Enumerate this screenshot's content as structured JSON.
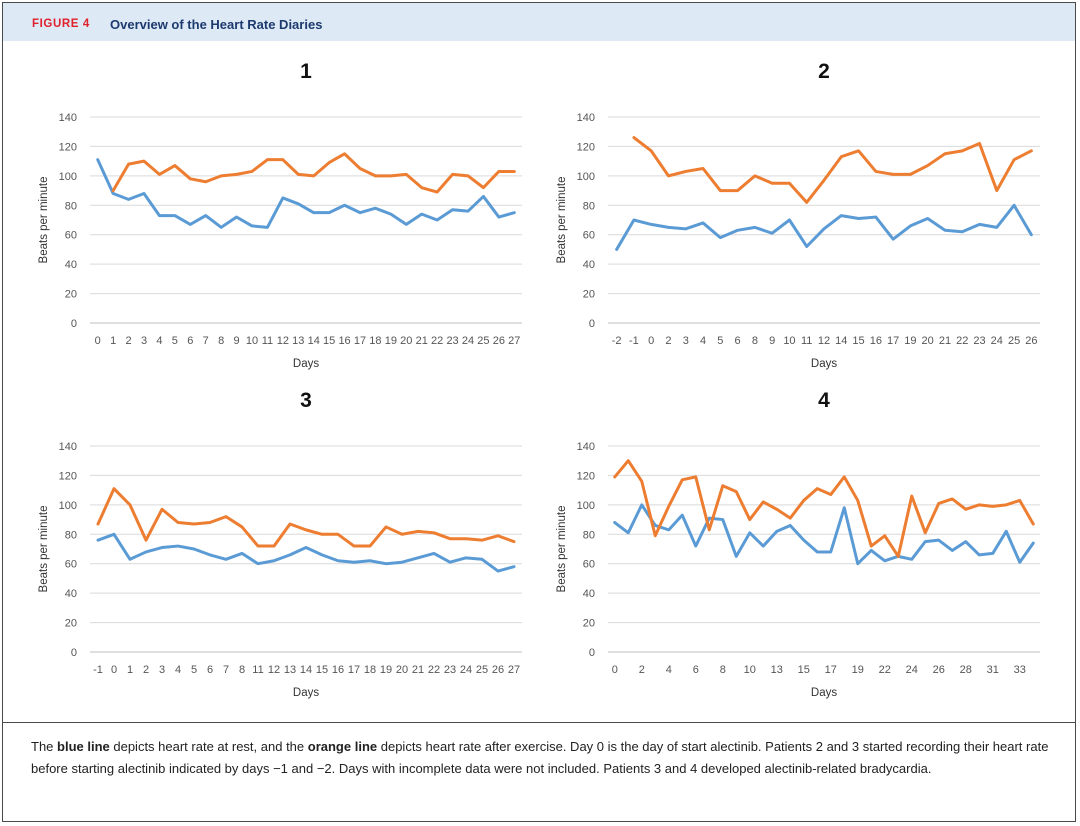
{
  "figure": {
    "label": "FIGURE 4",
    "title": "Overview of the Heart Rate Diaries",
    "caption_parts": [
      {
        "text": "The ",
        "bold": false
      },
      {
        "text": "blue line",
        "bold": true
      },
      {
        "text": " depicts heart rate at rest, and the ",
        "bold": false
      },
      {
        "text": "orange line",
        "bold": true
      },
      {
        "text": " depicts heart rate after exercise. Day 0 is the day of start alectinib. Patients 2 and 3 started recording their heart rate before starting alectinib indicated by days −1 and −2. Days with incomplete data were not included. Patients 3 and 4 developed alectinib-related bradycardia.",
        "bold": false
      }
    ]
  },
  "colors": {
    "rest": "#5b9bd5",
    "exercise": "#ed7d31",
    "grid": "#d9d9d9",
    "header_bg": "#dde9f5",
    "figure_label": "#e0202a",
    "title": "#1d3a6e"
  },
  "chart_data": [
    {
      "type": "line",
      "title": "1",
      "xlabel": "Days",
      "ylabel": "Beats per minute",
      "ylim": [
        0,
        140
      ],
      "yticks": [
        0,
        20,
        40,
        60,
        80,
        100,
        120,
        140
      ],
      "grid": true,
      "legend": "none",
      "categories": [
        "0",
        "1",
        "2",
        "3",
        "4",
        "5",
        "6",
        "7",
        "8",
        "9",
        "10",
        "11",
        "12",
        "13",
        "14",
        "15",
        "16",
        "17",
        "18",
        "19",
        "20",
        "21",
        "22",
        "23",
        "24",
        "25",
        "26",
        "27"
      ],
      "series": [
        {
          "color": "#5b9bd5",
          "values": [
            111,
            88,
            84,
            88,
            73,
            73,
            67,
            73,
            65,
            72,
            66,
            65,
            85,
            81,
            75,
            75,
            80,
            75,
            78,
            74,
            67,
            74,
            70,
            77,
            76,
            86,
            72,
            75
          ]
        },
        {
          "color": "#ed7d31",
          "values": [
            null,
            90,
            108,
            110,
            101,
            107,
            98,
            96,
            100,
            101,
            103,
            111,
            111,
            101,
            100,
            109,
            115,
            105,
            100,
            100,
            101,
            92,
            89,
            101,
            100,
            92,
            103,
            103
          ]
        }
      ]
    },
    {
      "type": "line",
      "title": "2",
      "xlabel": "Days",
      "ylabel": "Beats per minute",
      "ylim": [
        0,
        140
      ],
      "yticks": [
        0,
        20,
        40,
        60,
        80,
        100,
        120,
        140
      ],
      "grid": true,
      "legend": "none",
      "categories": [
        "-2",
        "-1",
        "0",
        "2",
        "3",
        "4",
        "5",
        "6",
        "8",
        "9",
        "10",
        "11",
        "12",
        "14",
        "15",
        "16",
        "17",
        "19",
        "20",
        "21",
        "22",
        "23",
        "24",
        "25",
        "26"
      ],
      "series": [
        {
          "color": "#5b9bd5",
          "values": [
            50,
            70,
            67,
            65,
            64,
            68,
            58,
            63,
            65,
            61,
            70,
            52,
            64,
            73,
            71,
            72,
            57,
            66,
            71,
            63,
            62,
            67,
            65,
            80,
            60
          ]
        },
        {
          "color": "#ed7d31",
          "values": [
            null,
            126,
            117,
            100,
            103,
            105,
            90,
            90,
            100,
            95,
            95,
            82,
            97,
            113,
            117,
            103,
            101,
            101,
            107,
            115,
            117,
            122,
            90,
            111,
            117
          ]
        }
      ]
    },
    {
      "type": "line",
      "title": "3",
      "xlabel": "Days",
      "ylabel": "Beats per minute",
      "ylim": [
        0,
        140
      ],
      "yticks": [
        0,
        20,
        40,
        60,
        80,
        100,
        120,
        140
      ],
      "grid": true,
      "legend": "none",
      "categories": [
        "-1",
        "0",
        "1",
        "2",
        "3",
        "4",
        "5",
        "6",
        "7",
        "8",
        "11",
        "12",
        "13",
        "14",
        "15",
        "16",
        "17",
        "18",
        "19",
        "20",
        "21",
        "22",
        "23",
        "24",
        "25",
        "26",
        "27"
      ],
      "series": [
        {
          "color": "#5b9bd5",
          "values": [
            76,
            80,
            63,
            68,
            71,
            72,
            70,
            66,
            63,
            67,
            60,
            62,
            66,
            71,
            66,
            62,
            61,
            62,
            60,
            61,
            64,
            67,
            61,
            64,
            63,
            55,
            58
          ]
        },
        {
          "color": "#ed7d31",
          "values": [
            87,
            111,
            100,
            76,
            97,
            88,
            87,
            88,
            92,
            85,
            72,
            72,
            87,
            83,
            80,
            80,
            72,
            72,
            85,
            80,
            82,
            81,
            77,
            77,
            76,
            79,
            75
          ]
        }
      ]
    },
    {
      "type": "line",
      "title": "4",
      "xlabel": "Days",
      "ylabel": "Beats per minute",
      "ylim": [
        0,
        140
      ],
      "yticks": [
        0,
        20,
        40,
        60,
        80,
        100,
        120,
        140
      ],
      "grid": true,
      "legend": "none",
      "categories": [
        "0",
        "",
        "2",
        "",
        "4",
        "",
        "6",
        "",
        "8",
        "",
        "10",
        "",
        "13",
        "",
        "15",
        "",
        "17",
        "",
        "19",
        "",
        "22",
        "",
        "24",
        "",
        "26",
        "",
        "28",
        "",
        "31",
        "",
        "33",
        ""
      ],
      "series": [
        {
          "color": "#5b9bd5",
          "values": [
            88,
            81,
            100,
            86,
            83,
            93,
            72,
            91,
            90,
            65,
            81,
            72,
            82,
            86,
            76,
            68,
            68,
            98,
            60,
            69,
            62,
            65,
            63,
            75,
            76,
            69,
            75,
            66,
            67,
            82,
            61,
            74
          ]
        },
        {
          "color": "#ed7d31",
          "values": [
            119,
            130,
            116,
            79,
            99,
            117,
            119,
            83,
            113,
            109,
            90,
            102,
            97,
            91,
            103,
            111,
            107,
            119,
            103,
            72,
            79,
            65,
            106,
            81,
            101,
            104,
            97,
            100,
            99,
            100,
            103,
            87
          ]
        }
      ]
    }
  ]
}
